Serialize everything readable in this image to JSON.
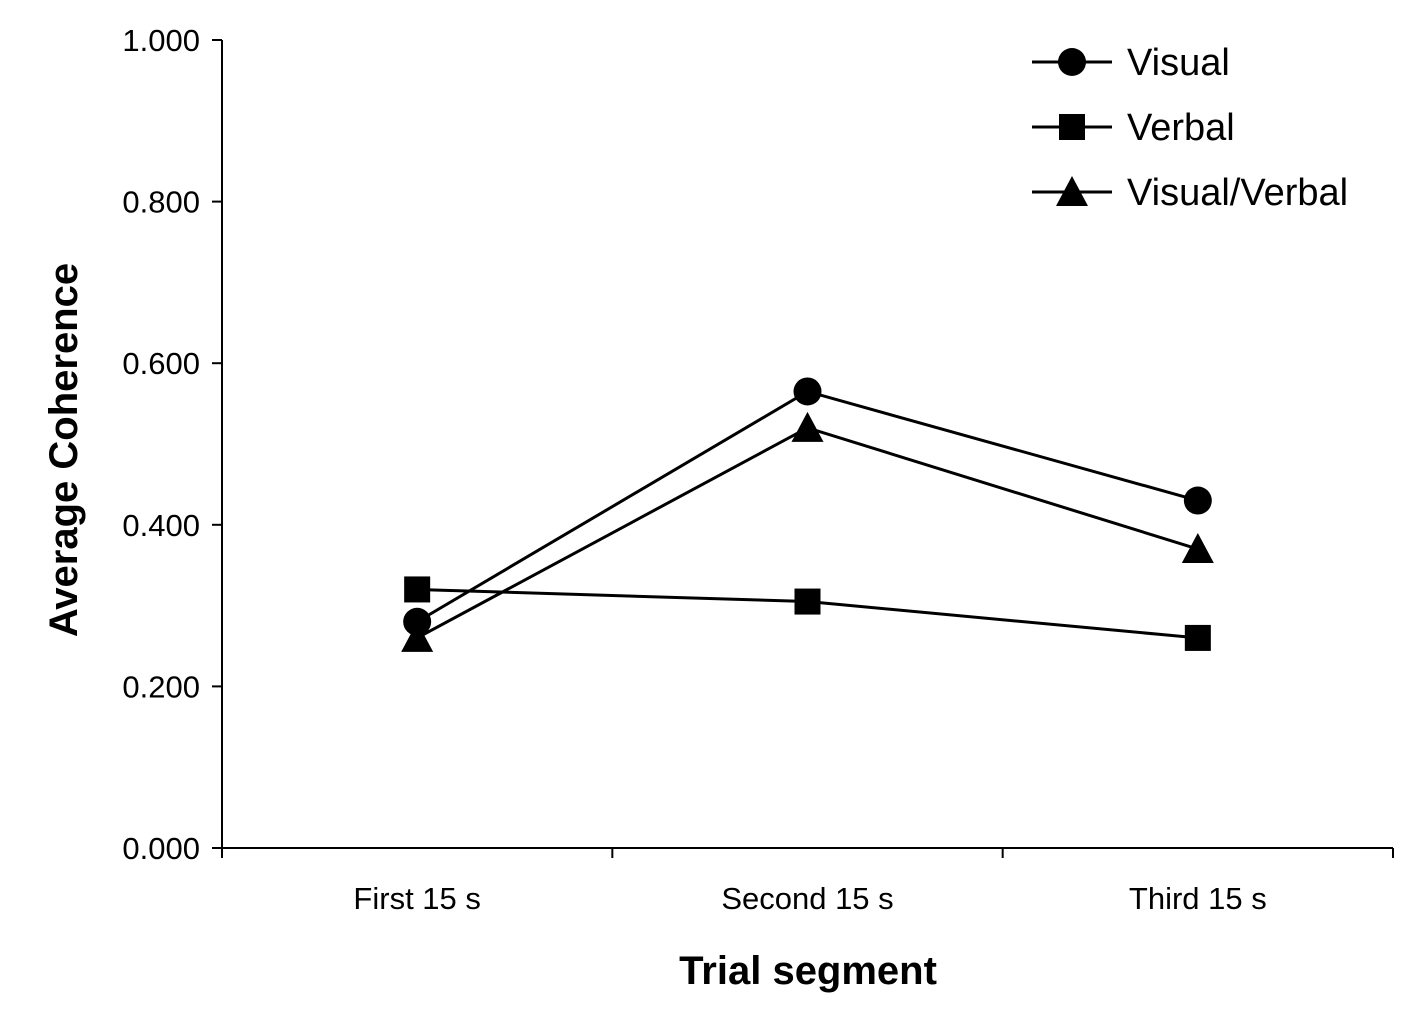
{
  "chart_data": {
    "type": "line",
    "categories": [
      "First 15 s",
      "Second 15 s",
      "Third 15 s"
    ],
    "series": [
      {
        "name": "Visual",
        "marker": "circle",
        "values": [
          0.28,
          0.565,
          0.43
        ]
      },
      {
        "name": "Verbal",
        "marker": "square",
        "values": [
          0.32,
          0.305,
          0.26
        ]
      },
      {
        "name": "Visual/Verbal",
        "marker": "triangle",
        "values": [
          0.26,
          0.52,
          0.37
        ]
      }
    ],
    "xlabel": "Trial segment",
    "ylabel": "Average Coherence",
    "ylim": [
      0,
      1
    ],
    "yticks": [
      "0.000",
      "0.200",
      "0.400",
      "0.600",
      "0.800",
      "1.000"
    ],
    "grid": false,
    "legend_position": "top-right",
    "color": "#000000"
  }
}
